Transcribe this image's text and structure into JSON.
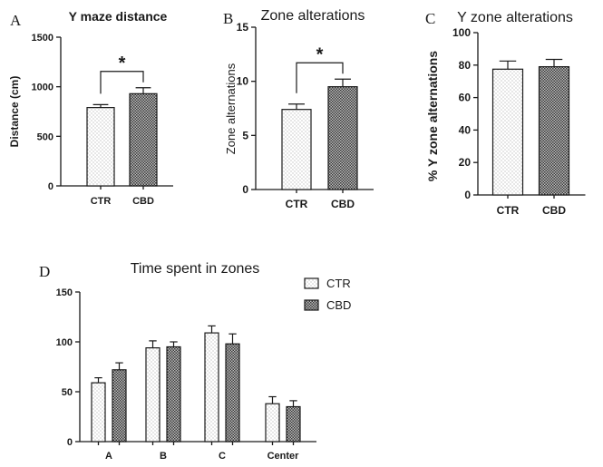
{
  "chart_data": [
    {
      "panel": "A",
      "type": "bar",
      "title": "Y maze distance",
      "ylabel": "Distance (cm)",
      "xlabel": "",
      "categories": [
        "CTR",
        "CBD"
      ],
      "series": [
        {
          "values": [
            790,
            930
          ],
          "errors": [
            30,
            60
          ]
        }
      ],
      "ylim": [
        0,
        1500
      ],
      "yticks": [
        0,
        500,
        1000,
        1500
      ],
      "significance": {
        "between": [
          "CTR",
          "CBD"
        ],
        "label": "*"
      },
      "grid": false
    },
    {
      "panel": "B",
      "type": "bar",
      "title": "Zone alterations",
      "ylabel": "Zone alternations",
      "xlabel": "",
      "categories": [
        "CTR",
        "CBD"
      ],
      "series": [
        {
          "values": [
            7.4,
            9.5
          ],
          "errors": [
            0.5,
            0.7
          ]
        }
      ],
      "ylim": [
        0,
        15
      ],
      "yticks": [
        0,
        5,
        10,
        15
      ],
      "significance": {
        "between": [
          "CTR",
          "CBD"
        ],
        "label": "*"
      },
      "grid": false
    },
    {
      "panel": "C",
      "type": "bar",
      "title": "Y zone alterations",
      "ylabel": "% Y zone alternations",
      "xlabel": "",
      "categories": [
        "CTR",
        "CBD"
      ],
      "series": [
        {
          "values": [
            77.5,
            79
          ],
          "errors": [
            5,
            4.5
          ]
        }
      ],
      "ylim": [
        0,
        100
      ],
      "yticks": [
        0,
        20,
        40,
        60,
        80,
        100
      ],
      "grid": false
    },
    {
      "panel": "D",
      "type": "bar",
      "title": "Time spent in zones",
      "ylabel": "",
      "xlabel": "",
      "categories": [
        "A",
        "B",
        "C",
        "Center"
      ],
      "series": [
        {
          "name": "CTR",
          "values": [
            59,
            94,
            109,
            38
          ],
          "errors": [
            5,
            7,
            7,
            7
          ]
        },
        {
          "name": "CBD",
          "values": [
            72,
            95,
            98,
            35
          ],
          "errors": [
            7,
            5,
            10,
            6
          ]
        }
      ],
      "ylim": [
        0,
        150
      ],
      "yticks": [
        0,
        50,
        100,
        150
      ],
      "legend": "top-right",
      "grid": false
    }
  ]
}
